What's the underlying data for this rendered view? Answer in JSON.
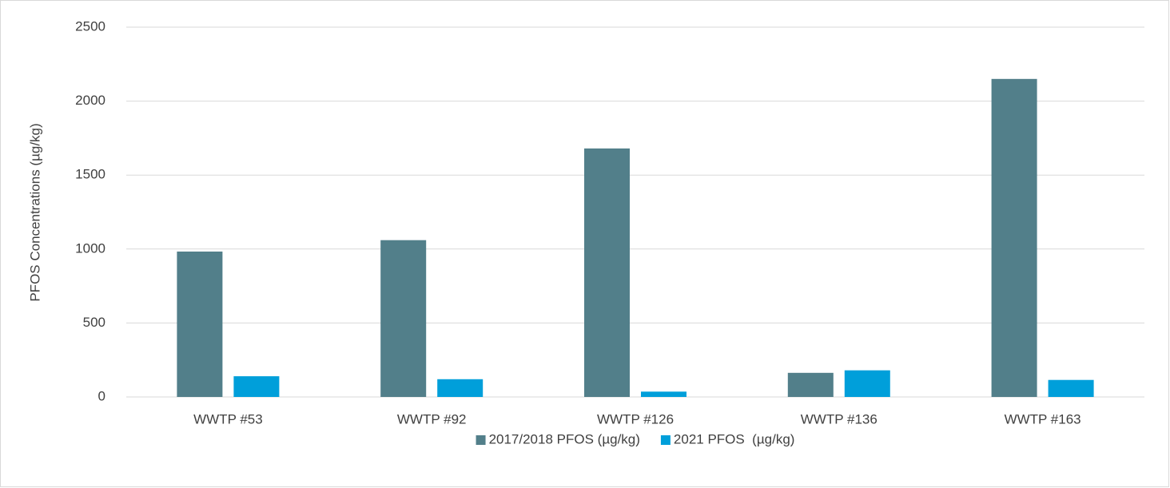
{
  "chart_data": {
    "type": "bar",
    "y_label": "PFOS Concentrations (µg/kg)",
    "categories": [
      "WWTP #53",
      "WWTP #92",
      "WWTP #126",
      "WWTP #136",
      "WWTP #163"
    ],
    "series": [
      {
        "name": "2017/2018 PFOS (µg/kg)",
        "color": "#527f8a",
        "values": [
          983,
          1060,
          1680,
          163,
          2150
        ]
      },
      {
        "name": "2021 PFOS  (µg/kg)",
        "color": "#009fda",
        "values": [
          140,
          120,
          36,
          180,
          115
        ]
      }
    ],
    "ylim": [
      0,
      2500
    ],
    "yticks": [
      0,
      500,
      1000,
      1500,
      2000,
      2500
    ],
    "grid": true,
    "legend": "bottom"
  }
}
